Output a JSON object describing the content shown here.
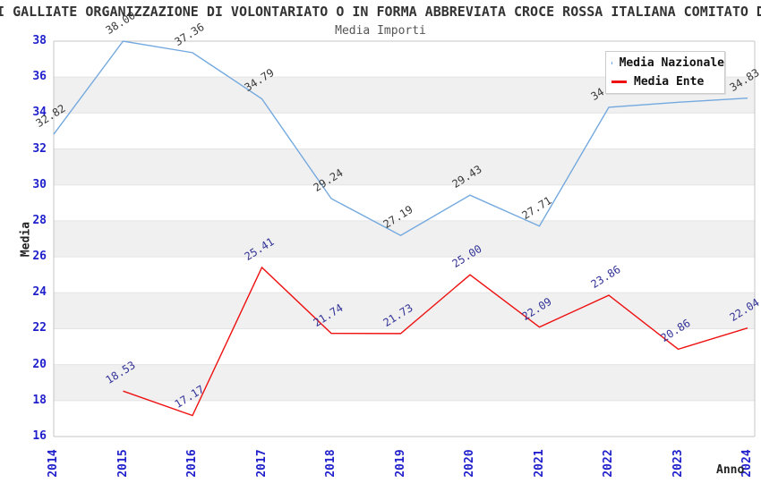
{
  "chart_data": {
    "type": "line",
    "title": "I GALLIATE ORGANIZZAZIONE DI VOLONTARIATO O IN FORMA ABBREVIATA CROCE ROSSA ITALIANA COMITATO D",
    "subtitle": "Media Importi",
    "xlabel": "Anno",
    "ylabel": "Media",
    "x": [
      "2014",
      "2015",
      "2016",
      "2017",
      "2018",
      "2019",
      "2020",
      "2021",
      "2022",
      "2023",
      "2024"
    ],
    "ylim": [
      16,
      38
    ],
    "ytick_step": 2,
    "grid": "alternating-horizontal-bands",
    "legend_position": "top-right",
    "series": [
      {
        "name": "Media Nazionale",
        "color": "#74A9DF",
        "label_color": "#3A3A3A",
        "values": [
          32.82,
          38.0,
          37.36,
          34.79,
          29.24,
          27.19,
          29.43,
          27.71,
          34.32,
          34.6,
          34.83
        ]
      },
      {
        "name": "Media Ente",
        "color": "#EE1111",
        "label_color": "#333399",
        "values": [
          null,
          18.53,
          17.17,
          25.41,
          21.74,
          21.73,
          25.0,
          22.09,
          23.86,
          20.86,
          22.04
        ]
      }
    ],
    "colors": {
      "axis_tick_blue": "#1F1FCC",
      "band_gray": "#F0F0F0",
      "band_edge": "#E4E4E4",
      "axis_line": "#C4C4C4",
      "title_text": "#333333",
      "subtitle_text": "#555555",
      "legend_text": "#111111",
      "background": "#FFFFFF"
    }
  }
}
